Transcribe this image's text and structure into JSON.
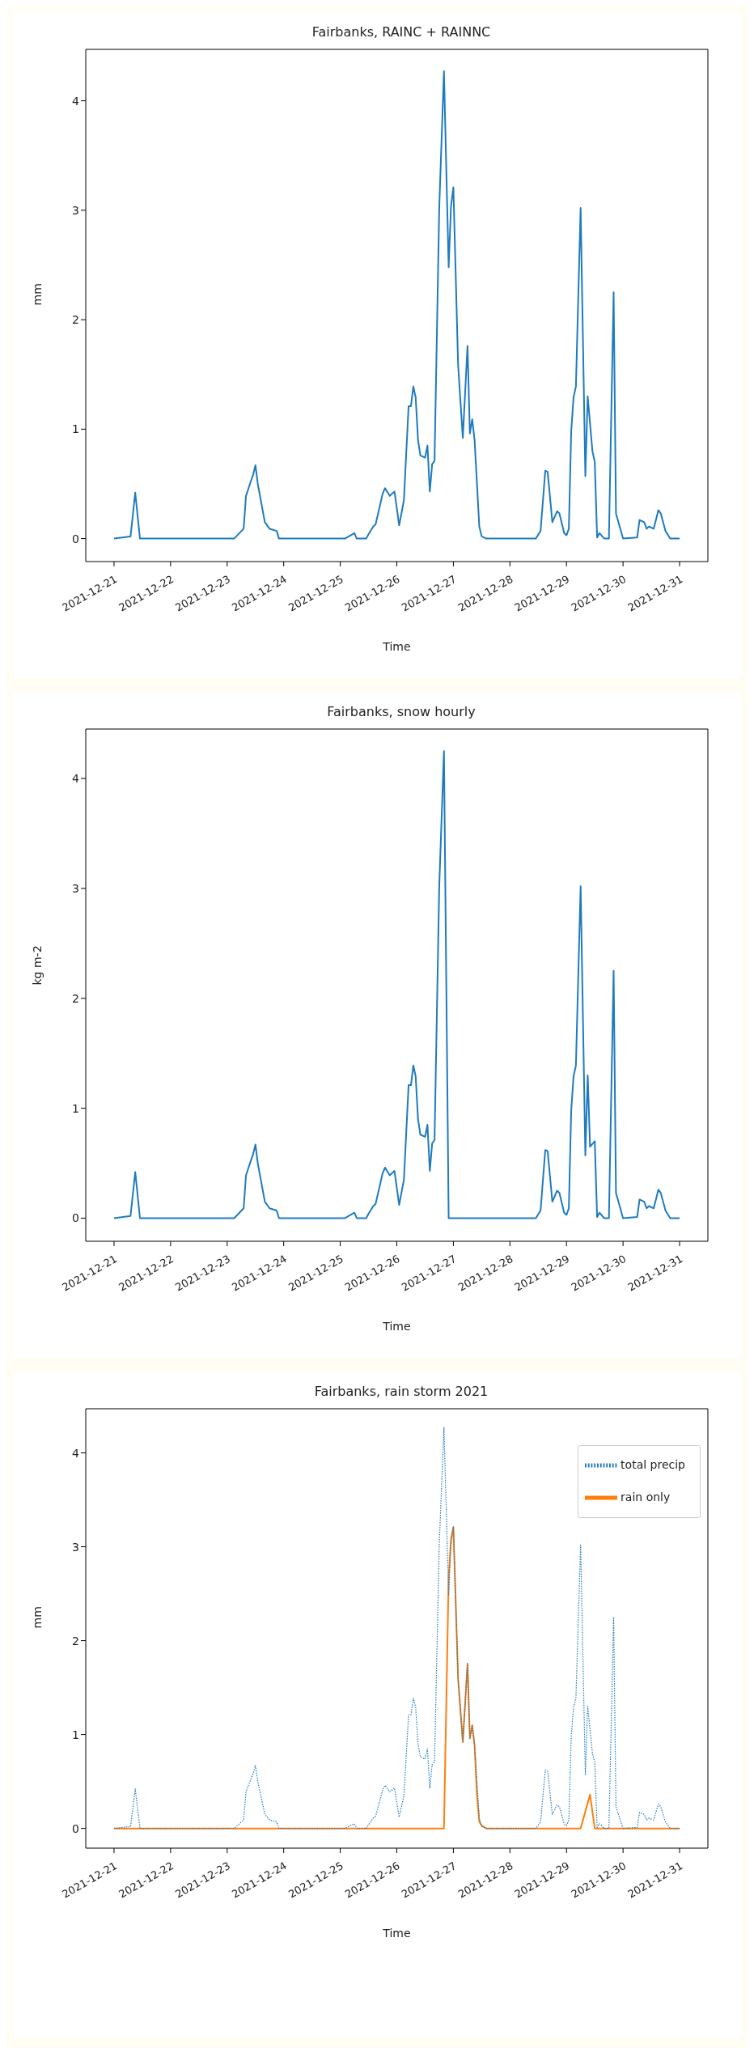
{
  "chart_data": [
    {
      "type": "line",
      "title": "Fairbanks, RAINC + RAINNC",
      "xlabel": "Time",
      "ylabel": "mm",
      "xlim": [
        "2021-12-20T12:00",
        "2021-12-31T12:00"
      ],
      "xticks": [
        "2021-12-21",
        "2021-12-22",
        "2021-12-23",
        "2021-12-24",
        "2021-12-25",
        "2021-12-26",
        "2021-12-27",
        "2021-12-28",
        "2021-12-29",
        "2021-12-30",
        "2021-12-31"
      ],
      "ylim": [
        -0.21,
        4.47
      ],
      "yticks": [
        0,
        1,
        2,
        3,
        4
      ],
      "series": [
        {
          "color": "#1f7bbf",
          "x": [
            "2021-12-21T00:00",
            "2021-12-21T07:00",
            "2021-12-21T09:00",
            "2021-12-21T11:00",
            "2021-12-23T00:00",
            "2021-12-23T03:00",
            "2021-12-23T07:00",
            "2021-12-23T08:00",
            "2021-12-23T10:00",
            "2021-12-23T11:00",
            "2021-12-23T12:00",
            "2021-12-23T13:00",
            "2021-12-23T16:00",
            "2021-12-23T18:00",
            "2021-12-23T21:00",
            "2021-12-23T22:00",
            "2021-12-25T02:00",
            "2021-12-25T06:00",
            "2021-12-25T07:00",
            "2021-12-25T11:00",
            "2021-12-25T12:00",
            "2021-12-25T14:00",
            "2021-12-25T15:00",
            "2021-12-25T18:00",
            "2021-12-25T19:00",
            "2021-12-25T21:00",
            "2021-12-25T23:00",
            "2021-12-26T01:00",
            "2021-12-26T03:00",
            "2021-12-26T05:00",
            "2021-12-26T06:00",
            "2021-12-26T07:00",
            "2021-12-26T08:00",
            "2021-12-26T09:00",
            "2021-12-26T10:00",
            "2021-12-26T12:00",
            "2021-12-26T13:00",
            "2021-12-26T14:00",
            "2021-12-26T15:00",
            "2021-12-26T16:00",
            "2021-12-26T18:00",
            "2021-12-26T20:00",
            "2021-12-26T22:00",
            "2021-12-26T23:00",
            "2021-12-27T00:00",
            "2021-12-27T02:00",
            "2021-12-27T04:00",
            "2021-12-27T06:00",
            "2021-12-27T07:00",
            "2021-12-27T08:00",
            "2021-12-27T09:00",
            "2021-12-27T11:00",
            "2021-12-27T12:00",
            "2021-12-27T14:00",
            "2021-12-28T11:00",
            "2021-12-28T13:00",
            "2021-12-28T15:00",
            "2021-12-28T16:00",
            "2021-12-28T18:00",
            "2021-12-28T20:00",
            "2021-12-28T21:00",
            "2021-12-28T23:00",
            "2021-12-29T00:00",
            "2021-12-29T01:00",
            "2021-12-29T02:00",
            "2021-12-29T03:00",
            "2021-12-29T04:00",
            "2021-12-29T06:00",
            "2021-12-29T08:00",
            "2021-12-29T09:00",
            "2021-12-29T11:00",
            "2021-12-29T12:00",
            "2021-12-29T13:00",
            "2021-12-29T14:00",
            "2021-12-29T16:00",
            "2021-12-29T18:00",
            "2021-12-29T20:00",
            "2021-12-29T21:00",
            "2021-12-30T00:00",
            "2021-12-30T06:00",
            "2021-12-30T07:00",
            "2021-12-30T09:00",
            "2021-12-30T10:00",
            "2021-12-30T11:00",
            "2021-12-30T13:00",
            "2021-12-30T15:00",
            "2021-12-30T16:00",
            "2021-12-30T18:00",
            "2021-12-30T20:00",
            "2021-12-31T00:00"
          ],
          "values": [
            0,
            0.02,
            0.42,
            0,
            0,
            0,
            0.09,
            0.39,
            0.52,
            0.58,
            0.67,
            0.5,
            0.15,
            0.09,
            0.07,
            0,
            0,
            0.05,
            0,
            0,
            0.04,
            0.11,
            0.13,
            0.41,
            0.46,
            0.39,
            0.43,
            0.12,
            0.35,
            1.21,
            1.21,
            1.39,
            1.29,
            0.9,
            0.76,
            0.74,
            0.85,
            0.43,
            0.68,
            0.71,
            3.02,
            4.27,
            2.48,
            3.04,
            3.21,
            1.59,
            0.92,
            1.76,
            0.96,
            1.09,
            0.9,
            0.11,
            0.02,
            0,
            0,
            0.07,
            0.62,
            0.61,
            0.15,
            0.25,
            0.23,
            0.05,
            0.03,
            0.09,
            0.98,
            1.29,
            1.39,
            3.02,
            0.57,
            1.3,
            0.8,
            0.7,
            0.01,
            0.05,
            0,
            0,
            2.25,
            0.23,
            0,
            0.01,
            0.17,
            0.15,
            0.09,
            0.11,
            0.09,
            0.26,
            0.23,
            0.07,
            0,
            0
          ]
        }
      ]
    },
    {
      "type": "line",
      "title": "Fairbanks, snow hourly",
      "xlabel": "Time",
      "ylabel": "kg m-2",
      "xlim": [
        "2021-12-20T12:00",
        "2021-12-31T12:00"
      ],
      "xticks": [
        "2021-12-21",
        "2021-12-22",
        "2021-12-23",
        "2021-12-24",
        "2021-12-25",
        "2021-12-26",
        "2021-12-27",
        "2021-12-28",
        "2021-12-29",
        "2021-12-30",
        "2021-12-31"
      ],
      "ylim": [
        -0.21,
        4.45
      ],
      "yticks": [
        0,
        1,
        2,
        3,
        4
      ],
      "series": [
        {
          "color": "#1f7bbf",
          "x": [
            "2021-12-21T00:00",
            "2021-12-21T07:00",
            "2021-12-21T09:00",
            "2021-12-21T11:00",
            "2021-12-23T00:00",
            "2021-12-23T03:00",
            "2021-12-23T07:00",
            "2021-12-23T08:00",
            "2021-12-23T10:00",
            "2021-12-23T11:00",
            "2021-12-23T12:00",
            "2021-12-23T13:00",
            "2021-12-23T16:00",
            "2021-12-23T18:00",
            "2021-12-23T21:00",
            "2021-12-23T22:00",
            "2021-12-25T02:00",
            "2021-12-25T06:00",
            "2021-12-25T07:00",
            "2021-12-25T11:00",
            "2021-12-25T12:00",
            "2021-12-25T14:00",
            "2021-12-25T15:00",
            "2021-12-25T18:00",
            "2021-12-25T19:00",
            "2021-12-25T21:00",
            "2021-12-25T23:00",
            "2021-12-26T01:00",
            "2021-12-26T03:00",
            "2021-12-26T05:00",
            "2021-12-26T06:00",
            "2021-12-26T07:00",
            "2021-12-26T08:00",
            "2021-12-26T09:00",
            "2021-12-26T10:00",
            "2021-12-26T12:00",
            "2021-12-26T13:00",
            "2021-12-26T14:00",
            "2021-12-26T15:00",
            "2021-12-26T16:00",
            "2021-12-26T18:00",
            "2021-12-26T20:00",
            "2021-12-26T22:00",
            "2021-12-28T11:00",
            "2021-12-28T13:00",
            "2021-12-28T15:00",
            "2021-12-28T16:00",
            "2021-12-28T18:00",
            "2021-12-28T20:00",
            "2021-12-28T21:00",
            "2021-12-28T23:00",
            "2021-12-29T00:00",
            "2021-12-29T01:00",
            "2021-12-29T02:00",
            "2021-12-29T03:00",
            "2021-12-29T04:00",
            "2021-12-29T06:00",
            "2021-12-29T08:00",
            "2021-12-29T09:00",
            "2021-12-29T10:00",
            "2021-12-29T12:00",
            "2021-12-29T13:00",
            "2021-12-29T14:00",
            "2021-12-29T16:00",
            "2021-12-29T18:00",
            "2021-12-29T20:00",
            "2021-12-29T21:00",
            "2021-12-30T00:00",
            "2021-12-30T06:00",
            "2021-12-30T07:00",
            "2021-12-30T09:00",
            "2021-12-30T10:00",
            "2021-12-30T11:00",
            "2021-12-30T13:00",
            "2021-12-30T15:00",
            "2021-12-30T16:00",
            "2021-12-30T18:00",
            "2021-12-30T20:00",
            "2021-12-31T00:00"
          ],
          "values": [
            0,
            0.02,
            0.42,
            0,
            0,
            0,
            0.09,
            0.39,
            0.52,
            0.58,
            0.67,
            0.5,
            0.15,
            0.09,
            0.07,
            0,
            0,
            0.05,
            0,
            0,
            0.04,
            0.11,
            0.13,
            0.41,
            0.46,
            0.39,
            0.43,
            0.12,
            0.35,
            1.21,
            1.21,
            1.39,
            1.29,
            0.9,
            0.76,
            0.74,
            0.85,
            0.43,
            0.68,
            0.71,
            3.02,
            4.25,
            0,
            0,
            0.07,
            0.62,
            0.61,
            0.15,
            0.25,
            0.23,
            0.05,
            0.03,
            0.09,
            0.98,
            1.29,
            1.39,
            3.02,
            0.57,
            1.3,
            0.65,
            0.7,
            0.01,
            0.05,
            0,
            0,
            2.25,
            0.23,
            0,
            0.01,
            0.17,
            0.15,
            0.09,
            0.11,
            0.09,
            0.26,
            0.23,
            0.07,
            0,
            0
          ]
        }
      ]
    },
    {
      "type": "line",
      "title": "Fairbanks, rain storm 2021",
      "xlabel": "Time",
      "ylabel": "mm",
      "xlim": [
        "2021-12-20T12:00",
        "2021-12-31T12:00"
      ],
      "xticks": [
        "2021-12-21",
        "2021-12-22",
        "2021-12-23",
        "2021-12-24",
        "2021-12-25",
        "2021-12-26",
        "2021-12-27",
        "2021-12-28",
        "2021-12-29",
        "2021-12-30",
        "2021-12-31"
      ],
      "ylim": [
        -0.21,
        4.47
      ],
      "yticks": [
        0,
        1,
        2,
        3,
        4
      ],
      "legend": "top right",
      "series": [
        {
          "name": "total precip",
          "color": "#1f7bbf",
          "line_style": "dotted",
          "x": [
            "2021-12-21T00:00",
            "2021-12-21T07:00",
            "2021-12-21T09:00",
            "2021-12-21T11:00",
            "2021-12-23T00:00",
            "2021-12-23T03:00",
            "2021-12-23T07:00",
            "2021-12-23T08:00",
            "2021-12-23T10:00",
            "2021-12-23T11:00",
            "2021-12-23T12:00",
            "2021-12-23T13:00",
            "2021-12-23T16:00",
            "2021-12-23T18:00",
            "2021-12-23T21:00",
            "2021-12-23T22:00",
            "2021-12-25T02:00",
            "2021-12-25T06:00",
            "2021-12-25T07:00",
            "2021-12-25T11:00",
            "2021-12-25T12:00",
            "2021-12-25T14:00",
            "2021-12-25T15:00",
            "2021-12-25T18:00",
            "2021-12-25T19:00",
            "2021-12-25T21:00",
            "2021-12-25T23:00",
            "2021-12-26T01:00",
            "2021-12-26T03:00",
            "2021-12-26T05:00",
            "2021-12-26T06:00",
            "2021-12-26T07:00",
            "2021-12-26T08:00",
            "2021-12-26T09:00",
            "2021-12-26T10:00",
            "2021-12-26T12:00",
            "2021-12-26T13:00",
            "2021-12-26T14:00",
            "2021-12-26T15:00",
            "2021-12-26T16:00",
            "2021-12-26T18:00",
            "2021-12-26T20:00",
            "2021-12-26T22:00",
            "2021-12-26T23:00",
            "2021-12-27T00:00",
            "2021-12-27T02:00",
            "2021-12-27T04:00",
            "2021-12-27T06:00",
            "2021-12-27T07:00",
            "2021-12-27T08:00",
            "2021-12-27T09:00",
            "2021-12-27T11:00",
            "2021-12-27T12:00",
            "2021-12-27T14:00",
            "2021-12-28T11:00",
            "2021-12-28T13:00",
            "2021-12-28T15:00",
            "2021-12-28T16:00",
            "2021-12-28T18:00",
            "2021-12-28T20:00",
            "2021-12-28T21:00",
            "2021-12-28T23:00",
            "2021-12-29T00:00",
            "2021-12-29T01:00",
            "2021-12-29T02:00",
            "2021-12-29T03:00",
            "2021-12-29T04:00",
            "2021-12-29T06:00",
            "2021-12-29T08:00",
            "2021-12-29T09:00",
            "2021-12-29T11:00",
            "2021-12-29T12:00",
            "2021-12-29T13:00",
            "2021-12-29T14:00",
            "2021-12-29T16:00",
            "2021-12-29T18:00",
            "2021-12-29T20:00",
            "2021-12-29T21:00",
            "2021-12-30T00:00",
            "2021-12-30T06:00",
            "2021-12-30T07:00",
            "2021-12-30T09:00",
            "2021-12-30T10:00",
            "2021-12-30T11:00",
            "2021-12-30T13:00",
            "2021-12-30T15:00",
            "2021-12-30T16:00",
            "2021-12-30T18:00",
            "2021-12-30T20:00",
            "2021-12-31T00:00"
          ],
          "values": [
            0,
            0.02,
            0.42,
            0,
            0,
            0,
            0.09,
            0.39,
            0.52,
            0.58,
            0.67,
            0.5,
            0.15,
            0.09,
            0.07,
            0,
            0,
            0.05,
            0,
            0,
            0.04,
            0.11,
            0.13,
            0.41,
            0.46,
            0.39,
            0.43,
            0.12,
            0.35,
            1.21,
            1.21,
            1.39,
            1.29,
            0.9,
            0.76,
            0.74,
            0.85,
            0.43,
            0.68,
            0.71,
            3.02,
            4.27,
            2.48,
            3.04,
            3.21,
            1.59,
            0.92,
            1.76,
            0.96,
            1.09,
            0.9,
            0.11,
            0.02,
            0,
            0,
            0.07,
            0.62,
            0.61,
            0.15,
            0.25,
            0.23,
            0.05,
            0.03,
            0.09,
            0.98,
            1.29,
            1.39,
            3.02,
            0.57,
            1.3,
            0.8,
            0.7,
            0.01,
            0.05,
            0,
            0,
            2.25,
            0.23,
            0,
            0.01,
            0.17,
            0.15,
            0.09,
            0.11,
            0.09,
            0.26,
            0.23,
            0.07,
            0,
            0
          ]
        },
        {
          "name": "rain only",
          "color": "#ff7f0e",
          "x": [
            "2021-12-21T00:00",
            "2021-12-26T20:00",
            "2021-12-26T22:00",
            "2021-12-26T23:00",
            "2021-12-27T00:00",
            "2021-12-27T02:00",
            "2021-12-27T04:00",
            "2021-12-27T06:00",
            "2021-12-27T07:00",
            "2021-12-27T08:00",
            "2021-12-27T09:00",
            "2021-12-27T10:00",
            "2021-12-27T11:00",
            "2021-12-27T12:00",
            "2021-12-27T14:00",
            "2021-12-29T06:00",
            "2021-12-29T10:00",
            "2021-12-29T12:00",
            "2021-12-31T00:00"
          ],
          "values": [
            0,
            0,
            2.68,
            3.08,
            3.21,
            1.6,
            0.92,
            1.75,
            0.96,
            1.1,
            0.88,
            0.35,
            0.07,
            0.03,
            0,
            0,
            0.36,
            0,
            0
          ]
        }
      ]
    }
  ]
}
